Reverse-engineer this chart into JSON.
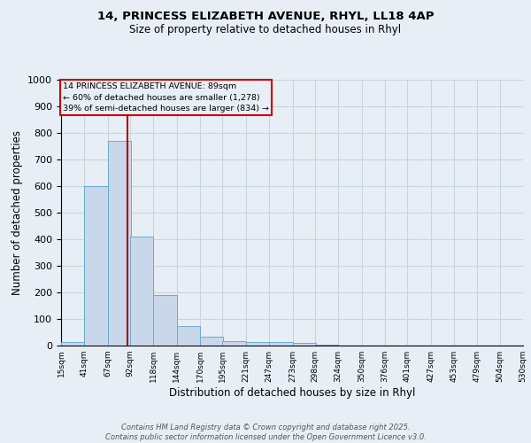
{
  "title_line1": "14, PRINCESS ELIZABETH AVENUE, RHYL, LL18 4AP",
  "title_line2": "Size of property relative to detached houses in Rhyl",
  "xlabel": "Distribution of detached houses by size in Rhyl",
  "ylabel": "Number of detached properties",
  "bin_edges": [
    15,
    41,
    67,
    92,
    118,
    144,
    170,
    195,
    221,
    247,
    273,
    298,
    324,
    350,
    376,
    401,
    427,
    453,
    479,
    504,
    530
  ],
  "bar_heights": [
    15,
    600,
    770,
    410,
    190,
    75,
    35,
    18,
    12,
    12,
    10,
    5,
    0,
    0,
    0,
    0,
    0,
    0,
    0,
    0
  ],
  "bar_color": "#c8d8ea",
  "bar_edgecolor": "#6aaad4",
  "property_size": 89,
  "annotation_text": "14 PRINCESS ELIZABETH AVENUE: 89sqm\n← 60% of detached houses are smaller (1,278)\n39% of semi-detached houses are larger (834) →",
  "annotation_box_color": "#cc0000",
  "vline_color": "#aa0000",
  "ylim": [
    0,
    1000
  ],
  "grid_color": "#c8d4de",
  "background_color": "#e8eef5",
  "footer_text": "Contains HM Land Registry data © Crown copyright and database right 2025.\nContains public sector information licensed under the Open Government Licence v3.0.",
  "tick_labels": [
    "15sqm",
    "41sqm",
    "67sqm",
    "92sqm",
    "118sqm",
    "144sqm",
    "170sqm",
    "195sqm",
    "221sqm",
    "247sqm",
    "273sqm",
    "298sqm",
    "324sqm",
    "350sqm",
    "376sqm",
    "401sqm",
    "427sqm",
    "453sqm",
    "479sqm",
    "504sqm",
    "530sqm"
  ]
}
